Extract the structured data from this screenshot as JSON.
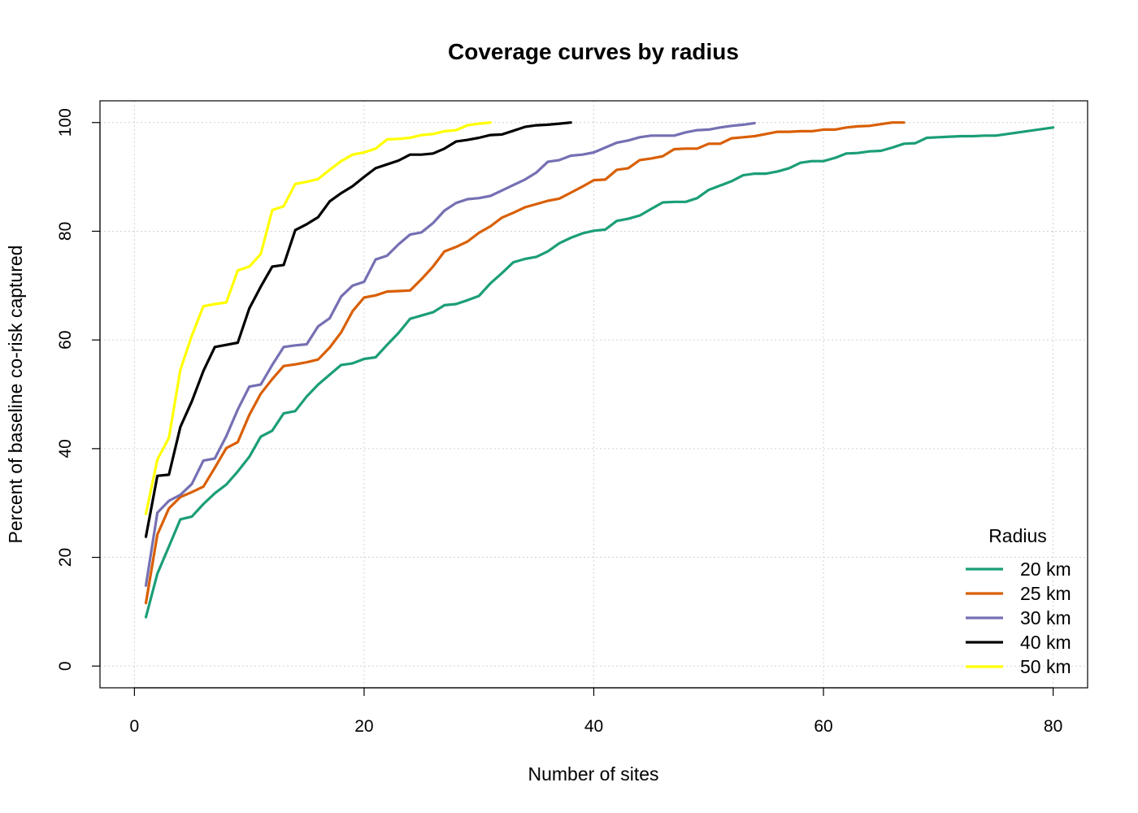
{
  "chart_data": {
    "type": "line",
    "title": "Coverage curves by radius",
    "xlabel": "Number of sites",
    "ylabel": "Percent of baseline co-risk captured",
    "xlim": [
      -3,
      83
    ],
    "ylim": [
      -4,
      104
    ],
    "xticks": [
      0,
      20,
      40,
      60,
      80
    ],
    "yticks": [
      0,
      20,
      40,
      60,
      80,
      100
    ],
    "grid": true,
    "legend": {
      "title": "Radius",
      "position": "bottom-right"
    },
    "series": [
      {
        "name": "20 km",
        "color": "#1b9e77",
        "x": [
          1,
          2,
          3,
          4,
          5,
          6,
          7,
          8,
          9,
          10,
          11,
          12,
          13,
          14,
          15,
          16,
          17,
          18,
          19,
          20,
          21,
          22,
          23,
          24,
          25,
          26,
          27,
          28,
          29,
          30,
          31,
          32,
          33,
          34,
          35,
          36,
          37,
          38,
          39,
          40,
          41,
          42,
          43,
          44,
          45,
          46,
          47,
          48,
          49,
          50,
          51,
          52,
          53,
          54,
          55,
          56,
          57,
          58,
          59,
          60,
          61,
          62,
          63,
          64,
          65,
          66,
          67,
          68,
          69,
          70,
          71,
          72,
          73,
          74,
          75,
          76,
          77,
          78,
          79,
          80
        ],
        "y": [
          9,
          17,
          22,
          27,
          27.5,
          29.8,
          31.8,
          33.4,
          35.8,
          38.5,
          42.2,
          43.3,
          46.5,
          46.9,
          49.6,
          51.8,
          53.6,
          55.4,
          55.7,
          56.5,
          56.8,
          59.1,
          61.3,
          63.9,
          64.5,
          65.1,
          66.4,
          66.6,
          67.3,
          68.1,
          70.4,
          72.3,
          74.3,
          74.9,
          75.3,
          76.3,
          77.8,
          78.8,
          79.6,
          80.1,
          80.3,
          81.9,
          82.3,
          82.9,
          84.1,
          85.3,
          85.4,
          85.4,
          86.1,
          87.6,
          88.4,
          89.2,
          90.3,
          90.6,
          90.6,
          91.0,
          91.6,
          92.6,
          92.9,
          92.9,
          93.5,
          94.3,
          94.4,
          94.7,
          94.8,
          95.4,
          96.1,
          96.2,
          97.2,
          97.3,
          97.4,
          97.5,
          97.5,
          97.6,
          97.6,
          97.9,
          98.2,
          98.5,
          98.8,
          99.1
        ]
      },
      {
        "name": "25 km",
        "color": "#d95f02",
        "x": [
          1,
          2,
          3,
          4,
          5,
          6,
          7,
          8,
          9,
          10,
          11,
          12,
          13,
          14,
          15,
          16,
          17,
          18,
          19,
          20,
          21,
          22,
          23,
          24,
          25,
          26,
          27,
          28,
          29,
          30,
          31,
          32,
          33,
          34,
          35,
          36,
          37,
          38,
          39,
          40,
          41,
          42,
          43,
          44,
          45,
          46,
          47,
          48,
          49,
          50,
          51,
          52,
          53,
          54,
          55,
          56,
          57,
          58,
          59,
          60,
          61,
          62,
          63,
          64,
          65,
          66,
          67
        ],
        "y": [
          11.6,
          24.2,
          29,
          31.1,
          32,
          33,
          36.5,
          40.1,
          41.2,
          46.2,
          50.1,
          52.8,
          55.2,
          55.5,
          55.9,
          56.4,
          58.6,
          61.4,
          65.3,
          67.8,
          68.2,
          68.9,
          69,
          69.1,
          71.2,
          73.5,
          76.3,
          77.1,
          78.1,
          79.7,
          80.9,
          82.5,
          83.4,
          84.4,
          85,
          85.6,
          86,
          87.1,
          88.2,
          89.4,
          89.5,
          91.3,
          91.6,
          93.1,
          93.4,
          93.8,
          95.1,
          95.2,
          95.2,
          96.1,
          96.1,
          97.1,
          97.3,
          97.5,
          97.9,
          98.3,
          98.3,
          98.4,
          98.4,
          98.7,
          98.7,
          99.1,
          99.3,
          99.4,
          99.7,
          100,
          100
        ]
      },
      {
        "name": "30 km",
        "color": "#7570b3",
        "x": [
          1,
          2,
          3,
          4,
          5,
          6,
          7,
          8,
          9,
          10,
          11,
          12,
          13,
          14,
          15,
          16,
          17,
          18,
          19,
          20,
          21,
          22,
          23,
          24,
          25,
          26,
          27,
          28,
          29,
          30,
          31,
          32,
          33,
          34,
          35,
          36,
          37,
          38,
          39,
          40,
          41,
          42,
          43,
          44,
          45,
          46,
          47,
          48,
          49,
          50,
          51,
          52,
          53,
          54
        ],
        "y": [
          14.8,
          28.2,
          30.4,
          31.5,
          33.5,
          37.8,
          38.2,
          42.3,
          47.2,
          51.4,
          51.8,
          55.4,
          58.7,
          59,
          59.2,
          62.5,
          64,
          68,
          70,
          70.7,
          74.8,
          75.5,
          77.6,
          79.4,
          79.8,
          81.5,
          83.8,
          85.2,
          85.9,
          86.1,
          86.5,
          87.5,
          88.5,
          89.5,
          90.8,
          92.8,
          93.1,
          93.9,
          94.1,
          94.5,
          95.4,
          96.3,
          96.7,
          97.3,
          97.6,
          97.6,
          97.6,
          98.2,
          98.6,
          98.7,
          99.1,
          99.4,
          99.6,
          99.9
        ]
      },
      {
        "name": "40 km",
        "color": "#000000",
        "x": [
          1,
          2,
          3,
          4,
          5,
          6,
          7,
          8,
          9,
          10,
          11,
          12,
          13,
          14,
          15,
          16,
          17,
          18,
          19,
          20,
          21,
          22,
          23,
          24,
          25,
          26,
          27,
          28,
          29,
          30,
          31,
          32,
          33,
          34,
          35,
          36,
          37,
          38
        ],
        "y": [
          23.8,
          35,
          35.2,
          44,
          48.7,
          54.3,
          58.7,
          59.1,
          59.5,
          65.8,
          69.8,
          73.5,
          73.8,
          80.2,
          81.3,
          82.6,
          85.5,
          87,
          88.3,
          90,
          91.6,
          92.3,
          93,
          94.1,
          94.1,
          94.3,
          95.2,
          96.5,
          96.8,
          97.2,
          97.7,
          97.8,
          98.5,
          99.2,
          99.5,
          99.6,
          99.8,
          100
        ]
      },
      {
        "name": "50 km",
        "color": "#ffff00",
        "x": [
          1,
          2,
          3,
          4,
          5,
          6,
          7,
          8,
          9,
          10,
          11,
          12,
          13,
          14,
          15,
          16,
          17,
          18,
          19,
          20,
          21,
          22,
          23,
          24,
          25,
          26,
          27,
          28,
          29,
          30,
          31
        ],
        "y": [
          28,
          38,
          42,
          54.5,
          60.8,
          66.2,
          66.6,
          66.9,
          72.8,
          73.5,
          75.8,
          83.9,
          84.6,
          88.7,
          89.1,
          89.6,
          91.3,
          92.9,
          94.1,
          94.5,
          95.2,
          96.9,
          97,
          97.2,
          97.7,
          97.9,
          98.4,
          98.6,
          99.5,
          99.8,
          100
        ]
      }
    ]
  }
}
